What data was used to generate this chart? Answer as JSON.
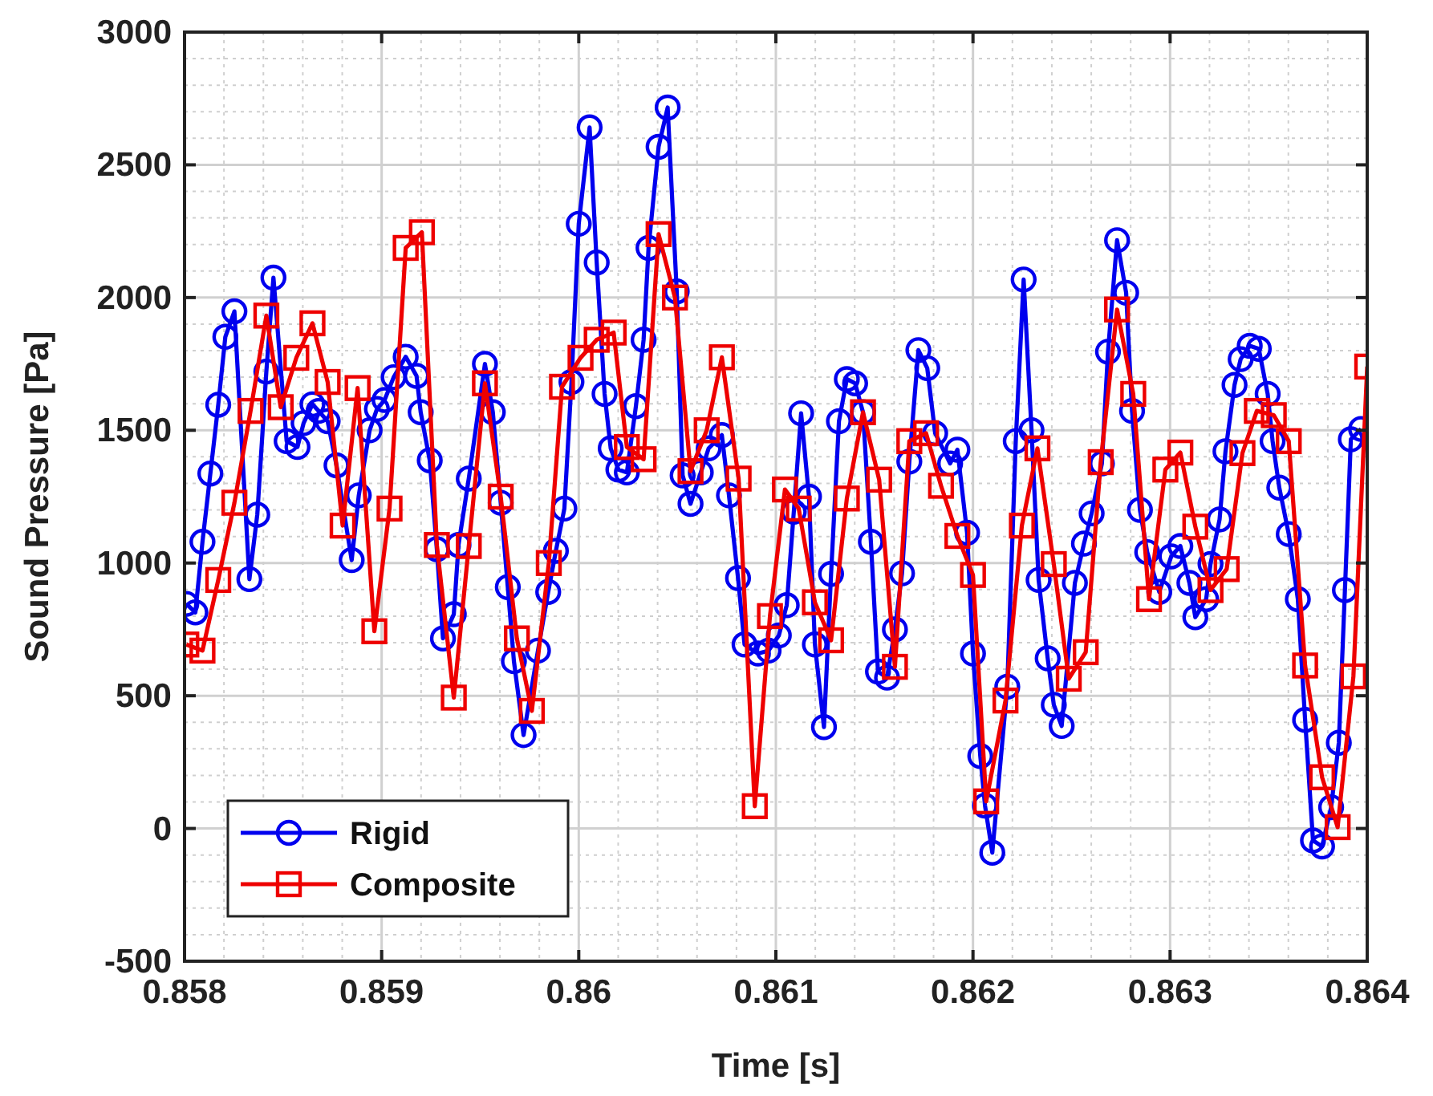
{
  "chart_data": {
    "type": "line",
    "xlabel": "Time [s]",
    "ylabel": "Sound Pressure [Pa]",
    "xlim": [
      0.858,
      0.864
    ],
    "xticks": [
      {
        "value": 0.858,
        "label": "0.858"
      },
      {
        "value": 0.859,
        "label": "0.859"
      },
      {
        "value": 0.86,
        "label": "0.86"
      },
      {
        "value": 0.861,
        "label": "0.861"
      },
      {
        "value": 0.862,
        "label": "0.862"
      },
      {
        "value": 0.863,
        "label": "0.863"
      },
      {
        "value": 0.864,
        "label": "0.864"
      }
    ],
    "ylim": [
      -500,
      3000
    ],
    "yticks": [
      -500,
      0,
      500,
      1000,
      1500,
      2000,
      2500,
      3000
    ],
    "grid": true,
    "legend": "bottom left",
    "line_style": "solid",
    "series": [
      {
        "name": "Rigid",
        "color": "#0000ee",
        "marker": "circle",
        "x": [
          0.858009,
          0.858055,
          0.858091,
          0.858131,
          0.858171,
          0.858207,
          0.858253,
          0.858329,
          0.858369,
          0.858415,
          0.858451,
          0.858518,
          0.858573,
          0.858604,
          0.858649,
          0.85868,
          0.858726,
          0.858771,
          0.858848,
          0.858884,
          0.858939,
          0.858976,
          0.859015,
          0.859061,
          0.859122,
          0.859177,
          0.859198,
          0.859244,
          0.85928,
          0.859311,
          0.859366,
          0.85939,
          0.859442,
          0.859524,
          0.859564,
          0.859604,
          0.85964,
          0.859671,
          0.85972,
          0.859793,
          0.859845,
          0.859884,
          0.859927,
          0.859963,
          0.86,
          0.860055,
          0.860091,
          0.860131,
          0.860162,
          0.860201,
          0.860244,
          0.86029,
          0.860329,
          0.860354,
          0.860405,
          0.860451,
          0.860497,
          0.860527,
          0.860567,
          0.860619,
          0.860659,
          0.860726,
          0.860762,
          0.860808,
          0.860841,
          0.860909,
          0.860963,
          0.861015,
          0.861055,
          0.861091,
          0.861128,
          0.861168,
          0.861198,
          0.861244,
          0.86128,
          0.86132,
          0.86136,
          0.861402,
          0.861442,
          0.861482,
          0.861518,
          0.861564,
          0.861604,
          0.86164,
          0.861677,
          0.861723,
          0.861768,
          0.861808,
          0.861884,
          0.861921,
          0.86197,
          0.862,
          0.862037,
          0.862061,
          0.862098,
          0.862174,
          0.862217,
          0.862257,
          0.862297,
          0.862333,
          0.862379,
          0.86241,
          0.86245,
          0.862517,
          0.862563,
          0.862602,
          0.862654,
          0.862685,
          0.862731,
          0.862777,
          0.862807,
          0.862847,
          0.862884,
          0.862945,
          0.863006,
          0.863052,
          0.863098,
          0.863128,
          0.863183,
          0.863205,
          0.863251,
          0.863281,
          0.863327,
          0.863358,
          0.863404,
          0.86345,
          0.863495,
          0.86352,
          0.863554,
          0.863602,
          0.863648,
          0.863685,
          0.863725,
          0.863771,
          0.863817,
          0.863856,
          0.863887,
          0.863917,
          0.863969
        ],
        "values": [
          846,
          814,
          1080,
          1337,
          1596,
          1852,
          1948,
          939,
          1182,
          1721,
          2075,
          1459,
          1437,
          1527,
          1598,
          1573,
          1534,
          1368,
          1011,
          1255,
          1500,
          1580,
          1614,
          1700,
          1777,
          1705,
          1568,
          1387,
          1052,
          716,
          807,
          1068,
          1318,
          1750,
          1568,
          1227,
          909,
          630,
          352,
          670,
          891,
          1046,
          1205,
          1682,
          2278,
          2641,
          2132,
          1637,
          1432,
          1352,
          1341,
          1591,
          1841,
          2187,
          2568,
          2716,
          2023,
          1330,
          1223,
          1341,
          1432,
          1482,
          1255,
          943,
          693,
          659,
          670,
          727,
          841,
          1193,
          1564,
          1250,
          693,
          382,
          959,
          1534,
          1693,
          1677,
          1568,
          1080,
          591,
          568,
          750,
          961,
          1382,
          1802,
          1734,
          1489,
          1375,
          1427,
          1114,
          659,
          273,
          86,
          -91,
          534,
          1459,
          2068,
          1500,
          936,
          641,
          466,
          386,
          925,
          1073,
          1187,
          1375,
          1796,
          2216,
          2018,
          1573,
          1200,
          1041,
          891,
          1025,
          1064,
          925,
          796,
          864,
          996,
          1164,
          1421,
          1671,
          1768,
          1818,
          1807,
          1637,
          1459,
          1284,
          1109,
          864,
          409,
          -45,
          -68,
          80,
          323,
          898,
          1466,
          1505
        ]
      },
      {
        "name": "Composite",
        "color": "#ee0000",
        "marker": "square",
        "x": [
          0.858009,
          0.858091,
          0.858171,
          0.858253,
          0.858335,
          0.858415,
          0.858488,
          0.858567,
          0.858649,
          0.858726,
          0.858802,
          0.858878,
          0.858963,
          0.85904,
          0.859122,
          0.859204,
          0.85928,
          0.859366,
          0.859442,
          0.859524,
          0.859604,
          0.859686,
          0.859762,
          0.859848,
          0.859915,
          0.860009,
          0.860091,
          0.860177,
          0.860244,
          0.860329,
          0.860405,
          0.860488,
          0.860567,
          0.860649,
          0.860726,
          0.860811,
          0.860893,
          0.86097,
          0.861046,
          0.861116,
          0.861198,
          0.86128,
          0.86136,
          0.861442,
          0.861524,
          0.861604,
          0.861677,
          0.861762,
          0.861838,
          0.861921,
          0.862,
          0.862067,
          0.862165,
          0.862248,
          0.862327,
          0.86241,
          0.862486,
          0.862572,
          0.862648,
          0.862731,
          0.862813,
          0.862893,
          0.862976,
          0.863052,
          0.863128,
          0.863205,
          0.863287,
          0.863367,
          0.86344,
          0.863526,
          0.863602,
          0.863685,
          0.863771,
          0.86385,
          0.86393,
          0.864
        ],
        "values": [
          693,
          670,
          936,
          1227,
          1573,
          1932,
          1587,
          1773,
          1903,
          1682,
          1141,
          1659,
          743,
          1205,
          2187,
          2246,
          1068,
          493,
          1064,
          1677,
          1250,
          716,
          443,
          1000,
          1664,
          1773,
          1841,
          1868,
          1437,
          1391,
          2239,
          2000,
          1346,
          1500,
          1775,
          1318,
          84,
          800,
          1277,
          1205,
          852,
          709,
          1243,
          1568,
          1314,
          609,
          1459,
          1489,
          1291,
          1102,
          955,
          102,
          482,
          1141,
          1432,
          996,
          564,
          664,
          1380,
          1955,
          1637,
          864,
          1352,
          1416,
          1137,
          898,
          977,
          1414,
          1573,
          1557,
          1459,
          614,
          193,
          5,
          573,
          1740
        ]
      }
    ]
  }
}
